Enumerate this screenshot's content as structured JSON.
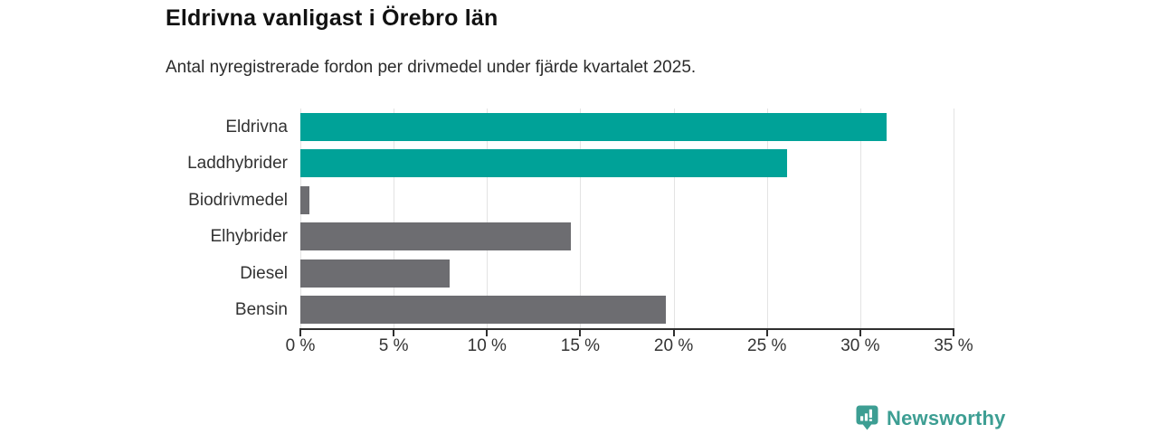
{
  "header": {
    "title": "Eldrivna vanligast i Örebro län",
    "subtitle": "Antal nyregistrerade fordon per drivmedel under fjärde kvartalet 2025."
  },
  "chart_data": {
    "type": "bar",
    "orientation": "horizontal",
    "title": "Eldrivna vanligast i Örebro län",
    "subtitle": "Antal nyregistrerade fordon per drivmedel under fjärde kvartalet 2025.",
    "categories": [
      "Eldrivna",
      "Laddhybrider",
      "Biodrivmedel",
      "Elhybrider",
      "Diesel",
      "Bensin"
    ],
    "values": [
      31.4,
      26.1,
      0.5,
      14.5,
      8.0,
      19.6
    ],
    "unit": "%",
    "xlabel": "",
    "ylabel": "",
    "xlim": [
      0,
      35
    ],
    "x_ticks": [
      0,
      5,
      10,
      15,
      20,
      25,
      30,
      35
    ],
    "x_tick_labels": [
      "0 %",
      "5 %",
      "10 %",
      "15 %",
      "20 %",
      "25 %",
      "30 %",
      "35 %"
    ],
    "grid": true,
    "legend": false,
    "colors": {
      "highlight": "#00a298",
      "default": "#6d6d71",
      "bar_colors": [
        "#00a298",
        "#00a298",
        "#6d6d71",
        "#6d6d71",
        "#6d6d71",
        "#6d6d71"
      ],
      "gridline": "#e3e3e3",
      "axis": "#2f2f2f",
      "text": "#333333"
    }
  },
  "branding": {
    "logo_text": "Newsworthy",
    "logo_color": "#3d9e93",
    "logo_icon": "bar-chart-speech-bubble-icon"
  }
}
